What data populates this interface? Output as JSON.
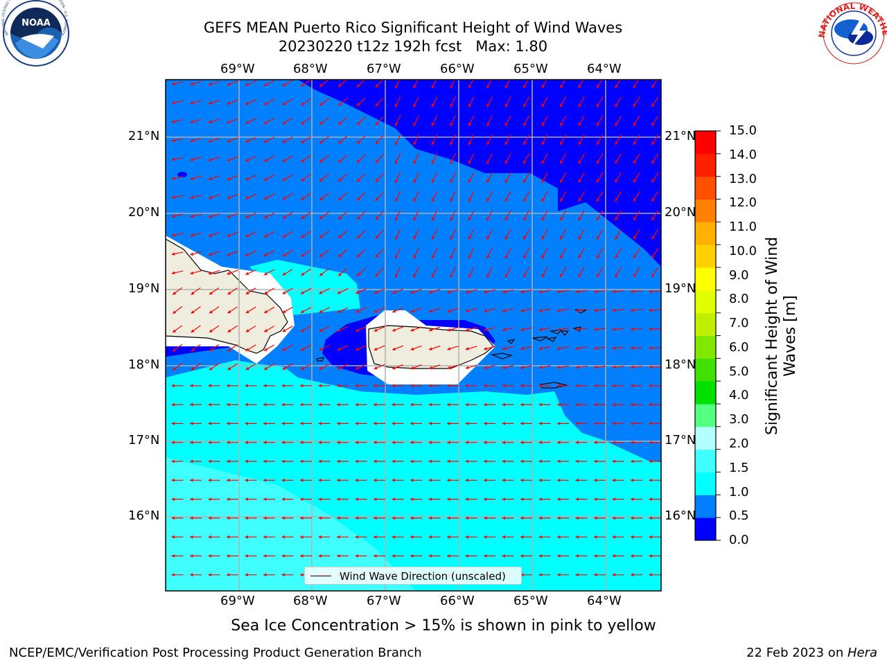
{
  "title": {
    "line1": "GEFS MEAN Puerto Rico Significant Height of Wind Waves",
    "line2": "20230220 t12z 192h fcst   Max: 1.80"
  },
  "logos": {
    "left": {
      "name": "noaa-logo",
      "text": "NOAA",
      "ring_text": "NATIONAL OCEANIC AND ATMOSPHERIC ADMINISTRATION · U.S. DEPARTMENT OF COMMERCE"
    },
    "right": {
      "name": "nws-logo",
      "ring_text": "NATIONAL WEATHER SERVICE"
    }
  },
  "map": {
    "lon_ticks": [
      "69°W",
      "68°W",
      "67°W",
      "66°W",
      "65°W",
      "64°W"
    ],
    "lat_ticks": [
      "21°N",
      "20°N",
      "19°N",
      "18°N",
      "17°N",
      "16°N"
    ],
    "legend_label": "Wind Wave Direction (unscaled)",
    "arrow_color": "#ff0000",
    "land_color": "#efedde",
    "grid": true
  },
  "colorbar": {
    "label_line1": "Significant Height of Wind",
    "label_line2": "Waves [m]",
    "ticks": [
      "15.0",
      "14.0",
      "13.0",
      "12.0",
      "11.0",
      "10.0",
      "9.0",
      "8.0",
      "7.0",
      "6.0",
      "5.0",
      "4.0",
      "3.0",
      "2.0",
      "1.5",
      "1.0",
      "0.5",
      "0.0"
    ],
    "colors": [
      "#0000ff",
      "#0080ff",
      "#00ffff",
      "#40ffff",
      "#b3ffff",
      "#55ff80",
      "#00e000",
      "#40e000",
      "#80e800",
      "#c0f000",
      "#e0ff00",
      "#ffff00",
      "#ffd000",
      "#ffb000",
      "#ff8000",
      "#ff5000",
      "#ff2000",
      "#ff0000"
    ]
  },
  "subtitle": "Sea Ice Concentration > 15% is shown in pink to yellow",
  "footer": {
    "left": "NCEP/EMC/Verification Post Processing Product Generation Branch",
    "right_date": "22 Feb 2023 on ",
    "right_machine": "Hera"
  }
}
